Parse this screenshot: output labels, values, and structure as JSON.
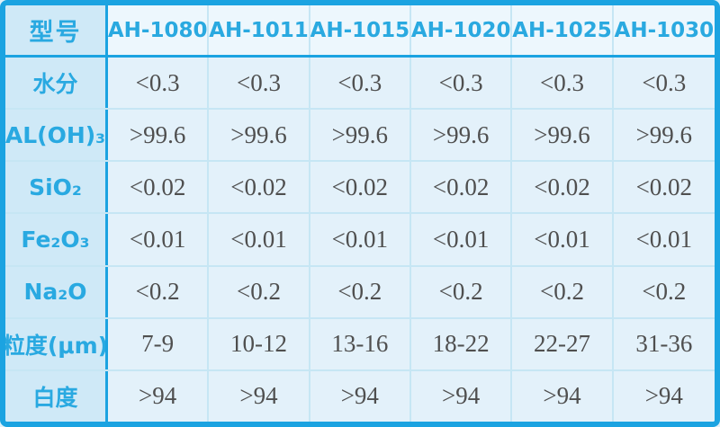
{
  "table": {
    "title_semantic": "product-specification-table",
    "header": {
      "corner_label": "型号",
      "columns": [
        "AH-1080",
        "AH-1011",
        "AH-1015",
        "AH-1020",
        "AH-1025",
        "AH-1030"
      ]
    },
    "rows": [
      {
        "label": "水分",
        "values": [
          "<0.3",
          "<0.3",
          "<0.3",
          "<0.3",
          "<0.3",
          "<0.3"
        ]
      },
      {
        "label": "AL(OH)₃",
        "values": [
          ">99.6",
          ">99.6",
          ">99.6",
          ">99.6",
          ">99.6",
          ">99.6"
        ]
      },
      {
        "label": "SiO₂",
        "values": [
          "<0.02",
          "<0.02",
          "<0.02",
          "<0.02",
          "<0.02",
          "<0.02"
        ]
      },
      {
        "label": "Fe₂O₃",
        "values": [
          "<0.01",
          "<0.01",
          "<0.01",
          "<0.01",
          "<0.01",
          "<0.01"
        ]
      },
      {
        "label": "Na₂O",
        "values": [
          "<0.2",
          "<0.2",
          "<0.2",
          "<0.2",
          "<0.2",
          "<0.2"
        ]
      },
      {
        "label": "粒度(μm)",
        "values": [
          "7-9",
          "10-12",
          "13-16",
          "18-22",
          "22-27",
          "31-36"
        ]
      },
      {
        "label": "白度",
        "values": [
          ">94",
          ">94",
          ">94",
          ">94",
          ">94",
          ">94"
        ]
      }
    ],
    "colors": {
      "border_strong": "#1ba3e1",
      "grid_light": "#c6e6f4",
      "label_bg": "#cfe9f7",
      "header_bg": "#edf7fd",
      "data_bg": "#e3f1fa",
      "accent_text": "#29a9e1",
      "data_text": "#4f4f4f"
    }
  }
}
